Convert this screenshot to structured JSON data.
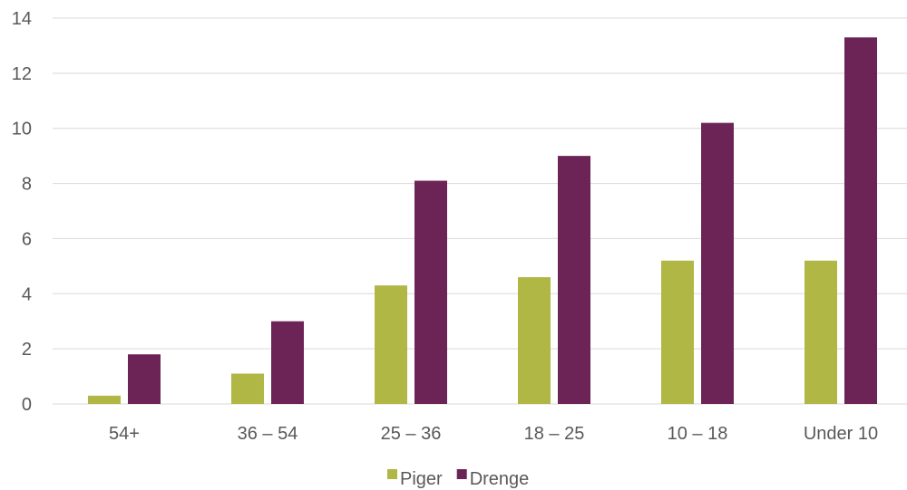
{
  "chart_data": {
    "type": "bar",
    "title": "",
    "xlabel": "",
    "ylabel": "",
    "categories": [
      "54+",
      "36 – 54",
      "25 – 36",
      "18 – 25",
      "10 – 18",
      "Under 10"
    ],
    "series": [
      {
        "name": "Piger",
        "values": [
          0.3,
          1.1,
          4.3,
          4.6,
          5.2,
          5.2
        ],
        "color": "#b0b745"
      },
      {
        "name": "Drenge",
        "values": [
          1.8,
          3.0,
          8.1,
          9.0,
          10.2,
          13.3
        ],
        "color": "#6c2457"
      }
    ],
    "ylim": [
      0,
      14
    ],
    "yticks": [
      "0",
      "2",
      "4",
      "6",
      "8",
      "10",
      "12",
      "14"
    ],
    "grid": true,
    "legend_position": "bottom"
  }
}
